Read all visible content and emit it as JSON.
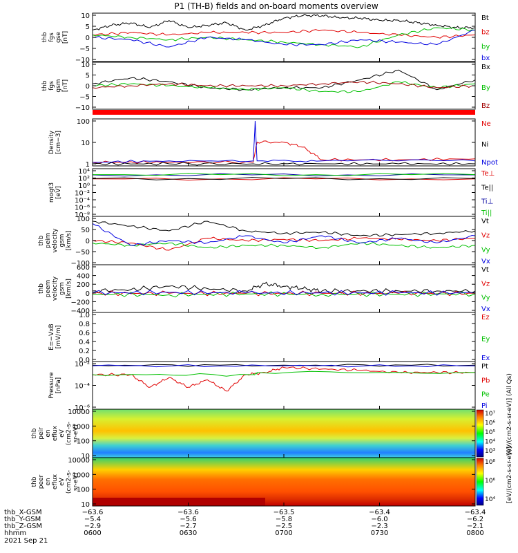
{
  "title": "P1 (TH-B) fields and on-board moments overview",
  "date_label": "2021 Sep 21",
  "chart_data": [
    {
      "type": "line",
      "panel": "fgs-gse",
      "ylabel_lines": [
        "thb",
        "fgs",
        "gse",
        "[nT]"
      ],
      "yticks": [
        "10",
        "5",
        "0",
        "−5",
        "−10"
      ],
      "ylim": [
        -10,
        10
      ],
      "series": [
        {
          "name": "Bt",
          "color": "#000000",
          "x": [
            0,
            0.05,
            0.1,
            0.15,
            0.2,
            0.25,
            0.3,
            0.35,
            0.4,
            0.45,
            0.5,
            0.55,
            0.6,
            0.65,
            0.7,
            0.75,
            0.8,
            0.85,
            0.9,
            0.95,
            1.0
          ],
          "values": [
            3,
            5,
            6,
            4,
            7,
            4,
            5,
            6,
            3,
            5,
            8,
            9,
            9,
            8,
            8,
            7,
            7,
            6,
            5,
            4,
            4
          ]
        },
        {
          "name": "bz",
          "color": "#e00000",
          "x": [
            0,
            0.1,
            0.2,
            0.3,
            0.4,
            0.5,
            0.6,
            0.7,
            0.8,
            0.9,
            1.0
          ],
          "values": [
            1,
            2,
            1,
            2,
            2,
            2,
            3,
            2,
            1,
            0,
            1
          ]
        },
        {
          "name": "by",
          "color": "#00c000",
          "x": [
            0,
            0.1,
            0.2,
            0.3,
            0.4,
            0.5,
            0.6,
            0.7,
            0.8,
            0.9,
            1.0
          ],
          "values": [
            1,
            0,
            -1,
            0,
            -1,
            -2,
            -3,
            -4,
            1,
            4,
            3
          ]
        },
        {
          "name": "bx",
          "color": "#0000e0",
          "x": [
            0,
            0.1,
            0.2,
            0.3,
            0.4,
            0.5,
            0.6,
            0.7,
            0.8,
            0.9,
            1.0
          ],
          "values": [
            0,
            -1,
            -4,
            0,
            -1,
            -3,
            -3,
            -1,
            -2,
            -3,
            3
          ]
        }
      ]
    },
    {
      "type": "line",
      "panel": "fgs-gsm",
      "ylabel_lines": [
        "thb",
        "fgs",
        "gsm",
        "[nT]"
      ],
      "yticks": [
        "10",
        "5",
        "0",
        "−5",
        "−10"
      ],
      "ylim": [
        -12,
        12
      ],
      "series": [
        {
          "name": "Bx",
          "color": "#000000",
          "x": [
            0,
            0.1,
            0.2,
            0.3,
            0.4,
            0.5,
            0.6,
            0.7,
            0.8,
            0.9,
            1.0
          ],
          "values": [
            1,
            4,
            2,
            -1,
            -2,
            -1,
            -1,
            3,
            8,
            -2,
            3
          ]
        },
        {
          "name": "By",
          "color": "#00c000",
          "x": [
            0,
            0.1,
            0.2,
            0.3,
            0.4,
            0.5,
            0.6,
            0.7,
            0.8,
            0.9,
            1.0
          ],
          "values": [
            0,
            1,
            0,
            -1,
            -2,
            -1,
            -3,
            -3,
            2,
            -1,
            1
          ]
        },
        {
          "name": "Bz",
          "color": "#a00000",
          "x": [
            0,
            0.1,
            0.2,
            0.3,
            0.4,
            0.5,
            0.6,
            0.7,
            0.8,
            0.9,
            1.0
          ],
          "values": [
            -1,
            0,
            1,
            0,
            0,
            0,
            1,
            2,
            1,
            -1,
            0
          ]
        }
      ]
    },
    {
      "type": "line",
      "panel": "density",
      "scale": "log",
      "ylabel_lines": [
        "Density",
        "[cm−3]"
      ],
      "yticks": [
        "100",
        "10",
        "1"
      ],
      "ylim": [
        0.3,
        200
      ],
      "series": [
        {
          "name": "Ne",
          "color": "#e00000",
          "x": [
            0,
            0.2,
            0.42,
            0.43,
            0.5,
            0.55,
            0.6,
            0.8,
            1.0
          ],
          "values": [
            0.5,
            0.5,
            0.5,
            8,
            8,
            4,
            0.7,
            0.7,
            0.8
          ]
        },
        {
          "name": "Ni",
          "color": "#000000",
          "x": [
            0,
            0.2,
            0.42,
            0.6,
            0.8,
            1.0
          ],
          "values": [
            0.4,
            0.4,
            0.4,
            0.4,
            0.4,
            0.4
          ]
        },
        {
          "name": "Npot",
          "color": "#0000e0",
          "x": [
            0,
            0.2,
            0.42,
            0.425,
            0.43,
            0.6,
            1.0
          ],
          "values": [
            0.5,
            0.6,
            0.6,
            150,
            0.6,
            0.6,
            0.6
          ]
        }
      ]
    },
    {
      "type": "line",
      "panel": "temperature",
      "scale": "log",
      "ylabel_lines": [
        "mogt3",
        "[eV]"
      ],
      "yticks": [
        "10⁴",
        "10²",
        "10⁰",
        "10⁻²",
        "10⁻⁴",
        "10⁻⁶",
        "10⁻⁸"
      ],
      "series": [
        {
          "name": "Te⊥",
          "color": "#e00000",
          "x": [
            0,
            1.0
          ],
          "values": [
            100,
            100
          ]
        },
        {
          "name": "Te||",
          "color": "#000000",
          "x": [
            0,
            1.0
          ],
          "values": [
            120,
            120
          ]
        },
        {
          "name": "Ti⊥",
          "color": "#0000a0",
          "x": [
            0,
            1.0
          ],
          "values": [
            1500,
            1500
          ]
        },
        {
          "name": "Ti||",
          "color": "#00c000",
          "x": [
            0,
            1.0
          ],
          "values": [
            1800,
            1800
          ]
        }
      ]
    },
    {
      "type": "line",
      "panel": "peim-velocity",
      "ylabel_lines": [
        "thb",
        "peim",
        "velocity",
        "gsm",
        "[km/s]"
      ],
      "yticks": [
        "100",
        "50",
        "0",
        "−50",
        "−100"
      ],
      "ylim": [
        -100,
        100
      ],
      "series": [
        {
          "name": "Vt",
          "color": "#000000",
          "x": [
            0,
            0.1,
            0.2,
            0.3,
            0.4,
            0.5,
            0.6,
            0.7,
            0.8,
            0.9,
            1.0
          ],
          "values": [
            80,
            60,
            40,
            80,
            40,
            30,
            35,
            20,
            25,
            30,
            40
          ]
        },
        {
          "name": "Vz",
          "color": "#e00000",
          "x": [
            0,
            0.1,
            0.2,
            0.3,
            0.4,
            0.5,
            0.6,
            0.7,
            0.8,
            0.9,
            1.0
          ],
          "values": [
            0,
            -10,
            -40,
            10,
            0,
            5,
            0,
            10,
            5,
            0,
            10
          ]
        },
        {
          "name": "Vy",
          "color": "#00c000",
          "x": [
            0,
            0.1,
            0.2,
            0.3,
            0.4,
            0.5,
            0.6,
            0.7,
            0.8,
            0.9,
            1.0
          ],
          "values": [
            -10,
            -20,
            -10,
            -30,
            -20,
            -20,
            -30,
            -10,
            -20,
            -30,
            -20
          ]
        },
        {
          "name": "Vx",
          "color": "#0000e0",
          "x": [
            0,
            0.1,
            0.2,
            0.3,
            0.4,
            0.5,
            0.6,
            0.7,
            0.8,
            0.9,
            1.0
          ],
          "values": [
            70,
            -20,
            0,
            -10,
            20,
            -10,
            20,
            -10,
            10,
            -10,
            20
          ]
        }
      ]
    },
    {
      "type": "line",
      "panel": "peem-velocity",
      "ylabel_lines": [
        "thb",
        "peem",
        "velocity",
        "gsm",
        "[km/s]"
      ],
      "yticks": [
        "600",
        "400",
        "200",
        "0",
        "−200",
        "−400"
      ],
      "ylim": [
        -400,
        600
      ],
      "series": [
        {
          "name": "Vt",
          "color": "#000000",
          "x": [
            0,
            0.1,
            0.2,
            0.3,
            0.4,
            0.45,
            0.5,
            0.55,
            0.6,
            0.7,
            0.8,
            0.9,
            1.0
          ],
          "values": [
            50,
            80,
            150,
            100,
            50,
            200,
            150,
            100,
            50,
            50,
            50,
            50,
            50
          ]
        },
        {
          "name": "Vz",
          "color": "#e00000",
          "x": [
            0,
            0.2,
            0.4,
            0.6,
            0.8,
            1.0
          ],
          "values": [
            0,
            0,
            0,
            0,
            0,
            0
          ]
        },
        {
          "name": "Vy",
          "color": "#00c000",
          "x": [
            0,
            0.2,
            0.4,
            0.6,
            0.8,
            1.0
          ],
          "values": [
            -20,
            -30,
            -10,
            -20,
            -20,
            -10
          ]
        },
        {
          "name": "Vx",
          "color": "#0000e0",
          "x": [
            0,
            0.2,
            0.4,
            0.6,
            0.8,
            1.0
          ],
          "values": [
            10,
            20,
            10,
            10,
            10,
            10
          ]
        }
      ]
    },
    {
      "type": "line",
      "panel": "e-field",
      "ylabel_lines": [
        "E=−VxB",
        "[mV/m]"
      ],
      "yticks": [
        "1.0",
        "0.8",
        "0.6",
        "0.4",
        "0.2",
        "0.0"
      ],
      "ylim": [
        0,
        1
      ],
      "series": [
        {
          "name": "Ez",
          "color": "#e00000",
          "x": [],
          "values": []
        },
        {
          "name": "Ey",
          "color": "#00c000",
          "x": [],
          "values": []
        },
        {
          "name": "Ex",
          "color": "#0000e0",
          "x": [],
          "values": []
        }
      ]
    },
    {
      "type": "line",
      "panel": "pressure",
      "scale": "log",
      "ylabel_lines": [
        "Pressure",
        "[nPa]"
      ],
      "yticks": [
        "10⁻²",
        "10⁻⁴",
        "10⁻⁶"
      ],
      "series": [
        {
          "name": "Pt",
          "color": "#000000",
          "x": [
            0,
            0.5,
            1.0
          ],
          "values": [
            0.1,
            0.1,
            0.1
          ]
        },
        {
          "name": "Pb",
          "color": "#e00000",
          "x": [
            0,
            0.1,
            0.15,
            0.2,
            0.25,
            0.3,
            0.35,
            0.4,
            0.45,
            0.5,
            0.6,
            0.7,
            0.8,
            0.9,
            1.0
          ],
          "values": [
            0.005,
            0.005,
            0.0001,
            0.002,
            0.0001,
            0.001,
            3e-05,
            0.005,
            0.01,
            0.05,
            0.03,
            0.02,
            0.01,
            0.01,
            0.01
          ]
        },
        {
          "name": "Pe",
          "color": "#00c000",
          "x": [
            0,
            0.42,
            0.43,
            1.0
          ],
          "values": [
            0.005,
            0.005,
            0.01,
            0.01
          ]
        },
        {
          "name": "Pi",
          "color": "#0000e0",
          "x": [
            0,
            0.5,
            1.0
          ],
          "values": [
            0.08,
            0.08,
            0.08
          ]
        }
      ]
    },
    {
      "type": "heatmap",
      "panel": "peir-en-eflux",
      "ylabel_lines": [
        "thb",
        "peir",
        "en",
        "eflux",
        "eV",
        "(cm2-s-",
        "sr-eV)"
      ],
      "yticks": [
        "10000",
        "1000",
        "100",
        "10"
      ],
      "colorbar_ticks": [
        "10⁷",
        "10⁶",
        "10⁵",
        "10⁴",
        "10³"
      ],
      "colorbar_label": "[eV/(cm2-s-sr-eV)] (All Qs)"
    },
    {
      "type": "heatmap",
      "panel": "peer-en-eflux",
      "ylabel_lines": [
        "thb",
        "peer",
        "en",
        "eflux",
        "eV",
        "(cm2-s-",
        "sr-eV)"
      ],
      "yticks": [
        "10000",
        "1000",
        "100",
        "10"
      ],
      "colorbar_ticks": [
        "10⁸",
        "10⁶",
        "10⁴"
      ],
      "colorbar_label": "[eV/(cm2-s-sr-eV)]"
    }
  ],
  "x_axis": {
    "row_labels": [
      "thb_X-GSM",
      "thb_Y-GSM",
      "thb_Z-GSM",
      "hhmm"
    ],
    "columns": [
      [
        "−63.6",
        "−5.4",
        "−2.9",
        "0600"
      ],
      [
        "−63.6",
        "−5.6",
        "−2.7",
        "0630"
      ],
      [
        "−63.5",
        "−5.8",
        "−2.5",
        "0700"
      ],
      [
        "−63.4",
        "−6.0",
        "−2.3",
        "0730"
      ],
      [
        "−63.4",
        "−6.2",
        "−2.1",
        "0800"
      ]
    ]
  }
}
